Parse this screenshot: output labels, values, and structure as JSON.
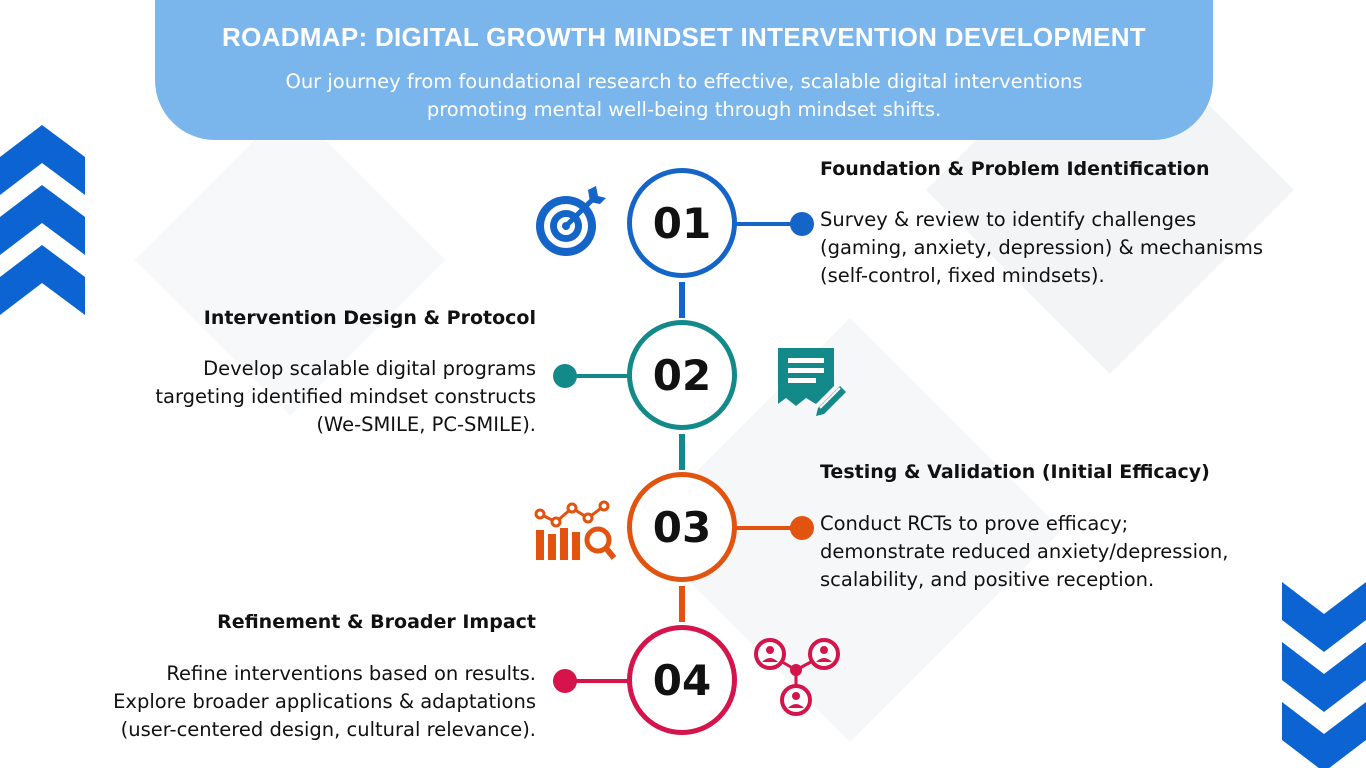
{
  "header": {
    "title": "ROADMAP: DIGITAL GROWTH MINDSET INTERVENTION DEVELOPMENT",
    "subtitle": "Our journey from foundational research to effective, scalable digital interventions promoting mental well-being through mindset shifts."
  },
  "colors": {
    "header_bg": "#7ab6ec",
    "step1": "#1565c8",
    "step2": "#14898a",
    "step3": "#e2530f",
    "step4": "#d4144a",
    "spine12": "#1565c8",
    "spine23": "#14898a",
    "spine34": "#e2530f",
    "chevrons": "#0b64d1"
  },
  "steps": [
    {
      "number": "01",
      "title": "Foundation & Problem Identification",
      "desc_lines": [
        "Survey & review to identify challenges",
        "(gaming, anxiety, depression) & mechanisms",
        "(self-control, fixed mindsets)."
      ],
      "icon": "target-icon"
    },
    {
      "number": "02",
      "title": "Intervention Design & Protocol",
      "desc_lines": [
        "Develop scalable digital programs",
        "targeting identified mindset constructs",
        "(We-SMILE, PC-SMILE)."
      ],
      "icon": "document-edit-icon"
    },
    {
      "number": "03",
      "title": "Testing & Validation (Initial Efficacy)",
      "desc_lines": [
        "Conduct RCTs to prove efficacy;",
        "demonstrate reduced anxiety/depression,",
        "scalability, and positive reception."
      ],
      "icon": "chart-analysis-icon"
    },
    {
      "number": "04",
      "title": "Refinement & Broader Impact",
      "desc_lines": [
        "Refine interventions based on results.",
        "Explore broader applications & adaptations",
        "(user-centered design, cultural relevance)."
      ],
      "icon": "network-people-icon"
    }
  ]
}
